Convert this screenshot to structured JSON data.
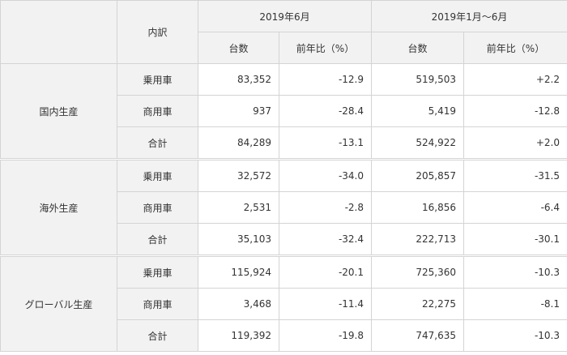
{
  "table": {
    "header": {
      "breakdown": "内訳",
      "period_month": "2019年6月",
      "period_ytd": "2019年1月～6月",
      "col_units": "台数",
      "col_yoy": "前年比（%）"
    },
    "groups": [
      {
        "name": "国内生産",
        "rows": [
          {
            "label": "乗用車",
            "m_units": "83,352",
            "m_yoy": "-12.9",
            "y_units": "519,503",
            "y_yoy": "+2.2",
            "bold": false
          },
          {
            "label": "商用車",
            "m_units": "937",
            "m_yoy": "-28.4",
            "y_units": "5,419",
            "y_yoy": "-12.8",
            "bold": false
          },
          {
            "label": "合計",
            "m_units": "84,289",
            "m_yoy": "-13.1",
            "y_units": "524,922",
            "y_yoy": "+2.0",
            "bold": true
          }
        ]
      },
      {
        "name": "海外生産",
        "rows": [
          {
            "label": "乗用車",
            "m_units": "32,572",
            "m_yoy": "-34.0",
            "y_units": "205,857",
            "y_yoy": "-31.5",
            "bold": false
          },
          {
            "label": "商用車",
            "m_units": "2,531",
            "m_yoy": "-2.8",
            "y_units": "16,856",
            "y_yoy": "-6.4",
            "bold": false
          },
          {
            "label": "合計",
            "m_units": "35,103",
            "m_yoy": "-32.4",
            "y_units": "222,713",
            "y_yoy": "-30.1",
            "bold": true
          }
        ]
      },
      {
        "name": "グローバル生産",
        "rows": [
          {
            "label": "乗用車",
            "m_units": "115,924",
            "m_yoy": "-20.1",
            "y_units": "725,360",
            "y_yoy": "-10.3",
            "bold": false
          },
          {
            "label": "商用車",
            "m_units": "3,468",
            "m_yoy": "-11.4",
            "y_units": "22,275",
            "y_yoy": "-8.1",
            "bold": false
          },
          {
            "label": "合計",
            "m_units": "119,392",
            "m_yoy": "-19.8",
            "y_units": "747,635",
            "y_yoy": "-10.3",
            "bold": true
          }
        ]
      }
    ]
  }
}
